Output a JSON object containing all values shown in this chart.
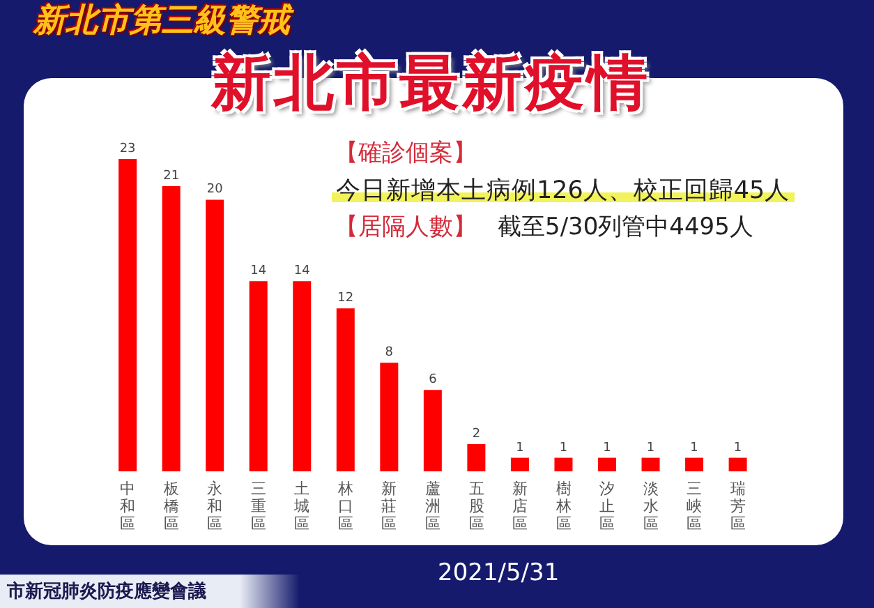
{
  "chart_data": {
    "type": "bar",
    "title": "新北市最新疫情",
    "subtitle": "新北市第三級警戒",
    "categories": [
      "中和區",
      "板橋區",
      "永和區",
      "三重區",
      "土城區",
      "林口區",
      "新莊區",
      "蘆洲區",
      "五股區",
      "新店區",
      "樹林區",
      "汐止區",
      "淡水區",
      "三峽區",
      "瑞芳區"
    ],
    "values": [
      23,
      21,
      20,
      14,
      14,
      12,
      8,
      6,
      2,
      1,
      1,
      1,
      1,
      1,
      1
    ],
    "color": "#ff0000",
    "data_labels": true,
    "annotations": [
      "【確診個案】",
      "今日新增本土病例126人、校正回歸45人",
      "【居隔人數】",
      "截至5/30列管中4495人",
      "2021/5/31",
      "市新冠肺炎防疫應變會議"
    ]
  }
}
